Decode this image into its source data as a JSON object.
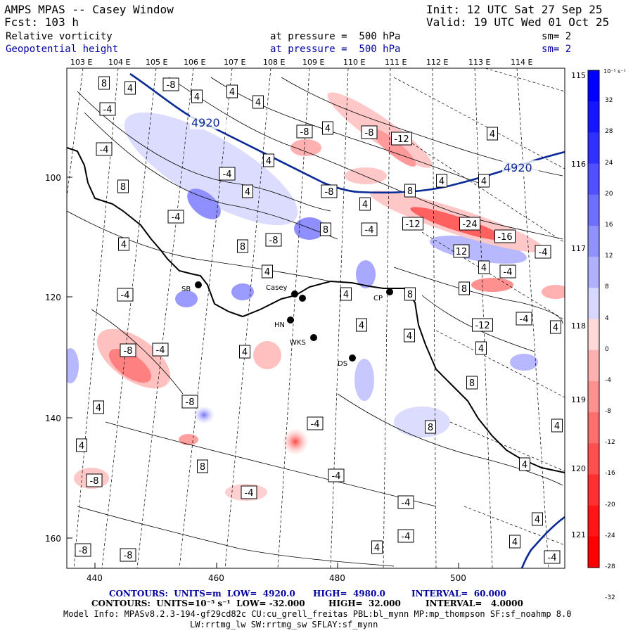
{
  "header": {
    "title": "AMPS MPAS -- Casey Window",
    "fcst": "Fcst: 103 h",
    "init": "Init: 12 UTC Sat 27 Sep 25",
    "valid": "Valid: 19 UTC Wed 01 Oct 25"
  },
  "fields": [
    {
      "name": "Relative vorticity",
      "pressure": "at pressure =  500 hPa",
      "sm": "sm= 2",
      "color": "#000000"
    },
    {
      "name": "Geopotential height",
      "pressure": "at pressure =  500 hPa",
      "sm": "sm= 2",
      "color": "#0000a0"
    }
  ],
  "axes": {
    "top_lon": [
      "103 E",
      "104 E",
      "105 E",
      "106 E",
      "107 E",
      "108 E",
      "109 E",
      "110 E",
      "111 E",
      "112 E",
      "113 E",
      "114 E"
    ],
    "right_lon": [
      "115 E",
      "116 E",
      "117 E",
      "118 E",
      "119 E",
      "120 E",
      "121 E"
    ],
    "left_y": [
      "100",
      "120",
      "140",
      "160"
    ],
    "bottom_x": [
      "440",
      "460",
      "480",
      "500"
    ]
  },
  "colorbar": {
    "unit": "10⁻⁵ s⁻¹",
    "ticks": [
      "32",
      "28",
      "24",
      "20",
      "16",
      "12",
      "8",
      "4",
      "0",
      "-4",
      "-8",
      "-12",
      "-16",
      "-20",
      "-24",
      "-28",
      "-32"
    ]
  },
  "stations": [
    "SB",
    "Casey",
    "HN",
    "WKS",
    "DS",
    "CP"
  ],
  "geopotential_labels": [
    "4920",
    "4920"
  ],
  "vorticity_labels": [
    "8",
    "4",
    "-8",
    "-4",
    "4",
    "4",
    "4",
    "-8",
    "4",
    "-4",
    "-12",
    "4",
    "4",
    "-8",
    "8",
    "4",
    "-4",
    "4",
    "-8",
    "4",
    "8",
    "4",
    "-4",
    "-12",
    "-24",
    "-16",
    "8",
    "-4",
    "12",
    "-4",
    "4",
    "8",
    "-8",
    "4",
    "-4",
    "4",
    "4",
    "-4",
    "8",
    "8",
    "4",
    "-12",
    "-8",
    "-4",
    "-4",
    "4",
    "4",
    "4",
    "8",
    "4",
    "4",
    "-8",
    "-4",
    "8",
    "4",
    "-4",
    "-4",
    "8",
    "-4",
    "-8",
    "4",
    "4",
    "4",
    "4",
    "-8",
    "-8",
    "-4",
    "4",
    "-4",
    "4",
    "8",
    "4",
    "4"
  ],
  "footer": {
    "line1_a": "CONTOURS:  UNITS=m  LOW=  4920.0",
    "line1_b": "HIGH=  4980.0",
    "line1_c": "INTERVAL=  60.000",
    "line2_a": "CONTOURS:  UNITS=10⁻⁵ s⁻¹  LOW= -32.000",
    "line2_b": "HIGH=  32.000",
    "line2_c": "INTERVAL=   4.0000",
    "line3": "Model Info: MPASv8.2.3-194-gf29cd82c CU:cu_grell_freitas PBL:bl_mynn MP:mp_thompson SF:sf_noahmp 8.0",
    "line4": "LW:rrtmg_lw SW:rrtmg_sw SFLAY:sf_mynn"
  }
}
